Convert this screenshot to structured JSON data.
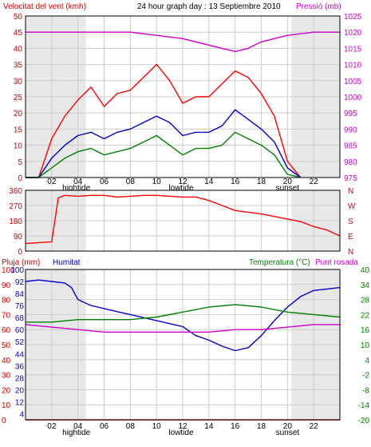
{
  "header": {
    "left_label": "Velocitat del vent (kmh)",
    "title": "24 hour graph day : 13 Septiembre 2010",
    "right_label": "Pressió (mb)"
  },
  "colors": {
    "wind": "#ff0000",
    "gust": "#ff0000",
    "avg_wind": "#0000cc",
    "wind_low": "#008000",
    "pressure": "#cc00cc",
    "direction": "#ff0000",
    "rain": "#ff0000",
    "humidity": "#0000cc",
    "temperature": "#008000",
    "dewpoint": "#cc00cc",
    "grid": "#cccccc",
    "night": "#e8e8e8"
  },
  "x_axis": {
    "ticks": [
      "02",
      "04",
      "06",
      "08",
      "10",
      "12",
      "14",
      "16",
      "18",
      "20",
      "22"
    ],
    "tick_hours": [
      2,
      4,
      6,
      8,
      10,
      12,
      14,
      16,
      18,
      20,
      22
    ],
    "annotations": [
      {
        "label": "hightide",
        "hour": 4
      },
      {
        "label": "lowtide",
        "hour": 12
      },
      {
        "label": "sunset",
        "hour": 20
      }
    ]
  },
  "panel_labels": {
    "rain": "Pluja (mm)",
    "humidity": "Humitat",
    "temperature": "Temperatura (°C)",
    "dewpoint": "Punt rosada"
  },
  "chart_data": [
    {
      "type": "line",
      "x_range": [
        0,
        24
      ],
      "ylim": [
        0,
        50
      ],
      "ylim_right": [
        975,
        1025
      ],
      "left_ticks": [
        0,
        5,
        10,
        15,
        20,
        25,
        30,
        35,
        40,
        45,
        50
      ],
      "right_ticks": [
        975,
        980,
        985,
        990,
        995,
        1000,
        1005,
        1010,
        1015,
        1020,
        1025
      ],
      "series": [
        {
          "name": "Velocitat del vent (kmh)",
          "axis": "left",
          "color_key": "gust",
          "x": [
            0,
            1,
            2,
            3,
            4,
            5,
            6,
            7,
            8,
            9,
            10,
            11,
            12,
            13,
            14,
            15,
            16,
            17,
            18,
            19,
            20,
            21
          ],
          "values": [
            0,
            0,
            12,
            19,
            24,
            28,
            22,
            26,
            27,
            31,
            35,
            30,
            23,
            25,
            25,
            29,
            33,
            31,
            26,
            19,
            5,
            0
          ]
        },
        {
          "name": "",
          "axis": "left",
          "color_key": "avg_wind",
          "x": [
            0,
            1,
            2,
            3,
            4,
            5,
            6,
            7,
            8,
            9,
            10,
            11,
            12,
            13,
            14,
            15,
            16,
            17,
            18,
            19,
            20,
            21
          ],
          "values": [
            0,
            0,
            6,
            10,
            13,
            14,
            12,
            14,
            15,
            17,
            19,
            17,
            13,
            14,
            14,
            16,
            21,
            18,
            15,
            11,
            3,
            0
          ]
        },
        {
          "name": "",
          "axis": "left",
          "color_key": "wind_low",
          "x": [
            0,
            1,
            2,
            3,
            4,
            5,
            6,
            7,
            8,
            9,
            10,
            11,
            12,
            13,
            14,
            15,
            16,
            17,
            18,
            19,
            20,
            21
          ],
          "values": [
            0,
            0,
            3,
            6,
            8,
            9,
            7,
            8,
            9,
            11,
            13,
            10,
            7,
            9,
            9,
            10,
            14,
            12,
            10,
            7,
            1,
            0
          ]
        },
        {
          "name": "Pressió (mb)",
          "axis": "right",
          "color_key": "pressure",
          "x": [
            0,
            2,
            4,
            6,
            8,
            10,
            12,
            14,
            15,
            16,
            17,
            18,
            20,
            22,
            24
          ],
          "values": [
            1020,
            1020,
            1020,
            1020,
            1020,
            1019,
            1018,
            1016,
            1015,
            1014,
            1015,
            1017,
            1019,
            1020,
            1020
          ]
        }
      ]
    },
    {
      "type": "line",
      "x_range": [
        0,
        24
      ],
      "ylim": [
        0,
        360
      ],
      "left_ticks": [
        0,
        90,
        180,
        270,
        360
      ],
      "right_tick_labels": [
        "N",
        "W",
        "S",
        "E",
        "N"
      ],
      "series": [
        {
          "name": "",
          "color_key": "direction",
          "x": [
            0,
            1,
            2,
            2.5,
            3,
            4,
            5,
            6,
            7,
            8,
            9,
            10,
            11,
            12,
            13,
            14,
            15,
            16,
            17,
            18,
            19,
            20,
            21,
            22,
            23,
            24
          ],
          "values": [
            45,
            50,
            55,
            315,
            330,
            325,
            330,
            330,
            320,
            325,
            330,
            330,
            325,
            320,
            320,
            300,
            270,
            240,
            230,
            220,
            205,
            190,
            175,
            145,
            125,
            90
          ]
        }
      ]
    },
    {
      "type": "line",
      "x_range": [
        0,
        24
      ],
      "ylim": [
        0,
        100
      ],
      "ylim_right": [
        -20,
        40
      ],
      "rain_ticks": [
        0,
        10,
        20,
        30,
        40,
        50,
        60,
        70,
        80,
        90,
        100
      ],
      "humidity_ticks": [
        0,
        4,
        12,
        20,
        28,
        36,
        44,
        52,
        60,
        68,
        76,
        84,
        92,
        100
      ],
      "humidity_tick_labels": [
        "0",
        "4",
        "12",
        "20",
        "28",
        "36",
        "44",
        "52",
        "60",
        "68",
        "76",
        "84",
        "92",
        "100"
      ],
      "temp_ticks": [
        -20,
        -14,
        -8,
        -2,
        4,
        10,
        16,
        22,
        28,
        34,
        40
      ],
      "series": [
        {
          "name": "Pluja (mm)",
          "axis": "left",
          "color_key": "rain",
          "x": [
            0,
            24
          ],
          "values": [
            0,
            0
          ]
        },
        {
          "name": "Humitat",
          "axis": "left",
          "color_key": "humidity",
          "x": [
            0,
            1,
            2,
            3,
            3.5,
            4,
            5,
            6,
            8,
            10,
            12,
            13,
            14,
            15,
            16,
            17,
            18,
            19,
            20,
            21,
            22,
            23,
            24
          ],
          "values": [
            92,
            93,
            92,
            91,
            88,
            80,
            76,
            74,
            70,
            66,
            62,
            56,
            53,
            49,
            46,
            48,
            56,
            66,
            75,
            82,
            86,
            87,
            88
          ]
        },
        {
          "name": "Temperatura (°C)",
          "axis": "right",
          "color_key": "temperature",
          "x": [
            0,
            2,
            4,
            6,
            8,
            10,
            12,
            14,
            16,
            18,
            20,
            22,
            24
          ],
          "values": [
            19,
            19,
            20,
            20,
            20,
            21,
            23,
            25,
            26,
            25,
            23,
            22,
            21
          ]
        },
        {
          "name": "Punt rosada",
          "axis": "right",
          "color_key": "dewpoint",
          "x": [
            0,
            2,
            4,
            6,
            8,
            10,
            12,
            14,
            16,
            18,
            20,
            22,
            24
          ],
          "values": [
            18,
            17,
            16,
            15,
            15,
            15,
            15,
            15,
            16,
            16,
            17,
            18,
            18
          ]
        }
      ]
    }
  ]
}
